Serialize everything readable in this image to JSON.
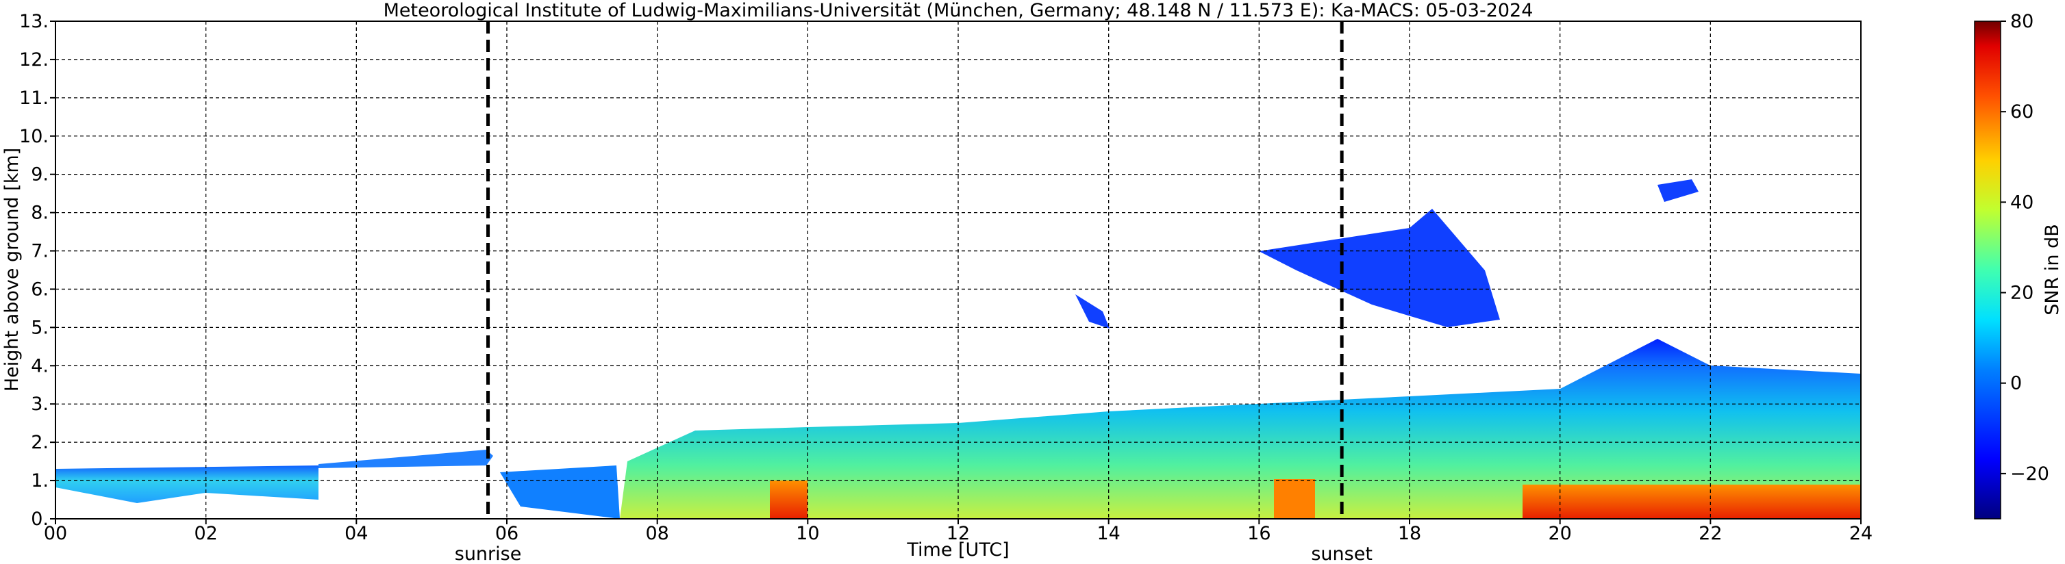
{
  "chart_data": {
    "type": "heatmap",
    "title": "Meteorological Institute of Ludwig-Maximilians-Universität (München, Germany; 48.148 N / 11.573 E):    Ka-MACS: 05-03-2024",
    "xlabel": "Time [UTC]",
    "ylabel": "Height above ground [km]",
    "xlim": [
      0,
      24
    ],
    "xticks": [
      {
        "value": 0,
        "label": "00"
      },
      {
        "value": 2,
        "label": "02"
      },
      {
        "value": 4,
        "label": "04"
      },
      {
        "value": 6,
        "label": "06"
      },
      {
        "value": 8,
        "label": "08"
      },
      {
        "value": 10,
        "label": "10"
      },
      {
        "value": 12,
        "label": "12"
      },
      {
        "value": 14,
        "label": "14"
      },
      {
        "value": 16,
        "label": "16"
      },
      {
        "value": 18,
        "label": "18"
      },
      {
        "value": 20,
        "label": "20"
      },
      {
        "value": 22,
        "label": "22"
      },
      {
        "value": 24,
        "label": "24"
      }
    ],
    "ylim": [
      0,
      13
    ],
    "yticks": [
      {
        "value": 0,
        "label": "0."
      },
      {
        "value": 1,
        "label": "1."
      },
      {
        "value": 2,
        "label": "2."
      },
      {
        "value": 3,
        "label": "3."
      },
      {
        "value": 4,
        "label": "4."
      },
      {
        "value": 5,
        "label": "5."
      },
      {
        "value": 6,
        "label": "6."
      },
      {
        "value": 7,
        "label": "7."
      },
      {
        "value": 8,
        "label": "8."
      },
      {
        "value": 9,
        "label": "9."
      },
      {
        "value": 10,
        "label": "10."
      },
      {
        "value": 11,
        "label": "11."
      },
      {
        "value": 12,
        "label": "12."
      },
      {
        "value": 13,
        "label": "13."
      }
    ],
    "grid": true,
    "colorbar": {
      "label": "SNR in dB",
      "clim": [
        -30,
        80
      ],
      "ticks": [
        {
          "value": -20,
          "label": "−20"
        },
        0,
        20,
        40,
        60,
        80
      ]
    },
    "annotations": [
      {
        "text": "sunrise",
        "x": 5.75
      },
      {
        "text": "sunset",
        "x": 17.1
      }
    ]
  }
}
